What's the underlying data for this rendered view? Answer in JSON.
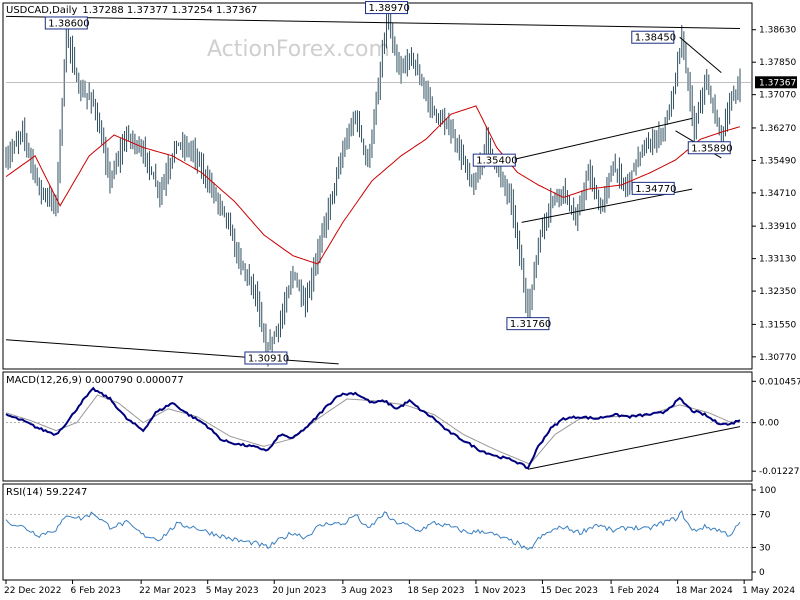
{
  "watermark": "ActionForex.com",
  "header": {
    "symbol": "USDCAD,Daily",
    "ohlc": "1.37288 1.37377 1.37254 1.37367"
  },
  "colors": {
    "bars": "#2f4f5f",
    "ma": "#cc0000",
    "macd_line": "#00007f",
    "macd_signal": "#9a9a9a",
    "rsi": "#3a7fc0",
    "trendline": "#000000",
    "current_price_box": "#000000"
  },
  "chart_data": [
    {
      "type": "ohlc",
      "panel": "price",
      "ylim": [
        1.3055,
        1.392
      ],
      "yticks": [
        "1.38630",
        "1.37850",
        "1.37070",
        "1.36270",
        "1.35490",
        "1.34710",
        "1.33910",
        "1.33130",
        "1.32350",
        "1.31550",
        "1.30770"
      ],
      "current_price": "1.37367",
      "xticks": [
        "22 Dec 2022",
        "6 Feb 2023",
        "22 Mar 2023",
        "5 May 2023",
        "20 Jun 2023",
        "3 Aug 2023",
        "18 Sep 2023",
        "1 Nov 2023",
        "15 Dec 2023",
        "1 Feb 2024",
        "18 Mar 2024",
        "1 May 2024"
      ],
      "annotations": [
        {
          "text": "1.38600",
          "date_index": 29,
          "value": 1.386
        },
        {
          "text": "1.38970",
          "date_index": 183,
          "value": 1.3897
        },
        {
          "text": "1.38450",
          "date_index": 325,
          "value": 1.3845
        },
        {
          "text": "1.35400",
          "date_index": 243,
          "value": 1.354
        },
        {
          "text": "1.35890",
          "date_index": 331,
          "value": 1.3589
        },
        {
          "text": "1.34770",
          "date_index": 305,
          "value": 1.3477
        },
        {
          "text": "1.31760",
          "date_index": 251,
          "value": 1.3176
        },
        {
          "text": "1.30910",
          "date_index": 125,
          "value": 1.3091
        }
      ],
      "anchors": [
        [
          0,
          1.355
        ],
        [
          8,
          1.362
        ],
        [
          16,
          1.348
        ],
        [
          24,
          1.344
        ],
        [
          29,
          1.386
        ],
        [
          35,
          1.372
        ],
        [
          42,
          1.369
        ],
        [
          50,
          1.35
        ],
        [
          58,
          1.361
        ],
        [
          66,
          1.357
        ],
        [
          74,
          1.347
        ],
        [
          82,
          1.359
        ],
        [
          90,
          1.357
        ],
        [
          98,
          1.349
        ],
        [
          106,
          1.341
        ],
        [
          112,
          1.331
        ],
        [
          120,
          1.323
        ],
        [
          125,
          1.3091
        ],
        [
          132,
          1.316
        ],
        [
          138,
          1.328
        ],
        [
          144,
          1.32
        ],
        [
          150,
          1.333
        ],
        [
          156,
          1.345
        ],
        [
          162,
          1.357
        ],
        [
          168,
          1.366
        ],
        [
          174,
          1.354
        ],
        [
          180,
          1.376
        ],
        [
          183,
          1.3897
        ],
        [
          189,
          1.376
        ],
        [
          195,
          1.38
        ],
        [
          201,
          1.372
        ],
        [
          207,
          1.365
        ],
        [
          213,
          1.363
        ],
        [
          219,
          1.356
        ],
        [
          225,
          1.348
        ],
        [
          231,
          1.36
        ],
        [
          237,
          1.352
        ],
        [
          243,
          1.345
        ],
        [
          248,
          1.329
        ],
        [
          251,
          1.3176
        ],
        [
          256,
          1.335
        ],
        [
          262,
          1.345
        ],
        [
          268,
          1.348
        ],
        [
          274,
          1.34
        ],
        [
          280,
          1.352
        ],
        [
          286,
          1.343
        ],
        [
          292,
          1.354
        ],
        [
          298,
          1.348
        ],
        [
          304,
          1.356
        ],
        [
          310,
          1.359
        ],
        [
          316,
          1.362
        ],
        [
          320,
          1.369
        ],
        [
          325,
          1.3845
        ],
        [
          331,
          1.362
        ],
        [
          336,
          1.374
        ],
        [
          340,
          1.368
        ],
        [
          344,
          1.36
        ],
        [
          348,
          1.368
        ],
        [
          353,
          1.3737
        ]
      ],
      "ma_anchors": [
        [
          0,
          1.351
        ],
        [
          14,
          1.356
        ],
        [
          26,
          1.344
        ],
        [
          40,
          1.356
        ],
        [
          52,
          1.361
        ],
        [
          66,
          1.358
        ],
        [
          80,
          1.356
        ],
        [
          94,
          1.352
        ],
        [
          110,
          1.345
        ],
        [
          124,
          1.337
        ],
        [
          138,
          1.332
        ],
        [
          150,
          1.33
        ],
        [
          162,
          1.34
        ],
        [
          176,
          1.35
        ],
        [
          190,
          1.356
        ],
        [
          202,
          1.36
        ],
        [
          214,
          1.366
        ],
        [
          226,
          1.368
        ],
        [
          236,
          1.358
        ],
        [
          246,
          1.352
        ],
        [
          256,
          1.349
        ],
        [
          268,
          1.346
        ],
        [
          280,
          1.348
        ],
        [
          296,
          1.349
        ],
        [
          310,
          1.352
        ],
        [
          322,
          1.355
        ],
        [
          334,
          1.36
        ],
        [
          346,
          1.362
        ],
        [
          353,
          1.363
        ]
      ]
    },
    {
      "type": "line",
      "panel": "macd",
      "title": "MACD(12,26,9) 0.000790 0.000077",
      "ylim": [
        -0.014,
        0.0118
      ],
      "yticks": [
        "0.010457",
        "0.00",
        "-0.012276"
      ],
      "series_anchors": [
        [
          0,
          0.002
        ],
        [
          8,
          0.0005
        ],
        [
          16,
          -0.0015
        ],
        [
          24,
          -0.003
        ],
        [
          30,
          0.0005
        ],
        [
          36,
          0.005
        ],
        [
          42,
          0.0085
        ],
        [
          50,
          0.006
        ],
        [
          58,
          0.001
        ],
        [
          66,
          -0.002
        ],
        [
          72,
          0.0025
        ],
        [
          80,
          0.005
        ],
        [
          88,
          0.002
        ],
        [
          96,
          -0.0005
        ],
        [
          104,
          -0.0045
        ],
        [
          112,
          -0.0055
        ],
        [
          118,
          -0.006
        ],
        [
          126,
          -0.007
        ],
        [
          132,
          -0.003
        ],
        [
          138,
          -0.004
        ],
        [
          146,
          -0.0005
        ],
        [
          154,
          0.004
        ],
        [
          160,
          0.007
        ],
        [
          168,
          0.0075
        ],
        [
          176,
          0.005
        ],
        [
          182,
          0.0055
        ],
        [
          188,
          0.0035
        ],
        [
          194,
          0.0055
        ],
        [
          200,
          0.003
        ],
        [
          206,
          0.001
        ],
        [
          212,
          -0.002
        ],
        [
          220,
          -0.0045
        ],
        [
          228,
          -0.007
        ],
        [
          236,
          -0.0085
        ],
        [
          244,
          -0.0095
        ],
        [
          251,
          -0.0115
        ],
        [
          256,
          -0.006
        ],
        [
          262,
          -0.0015
        ],
        [
          268,
          0.001
        ],
        [
          276,
          0.0015
        ],
        [
          284,
          0.001
        ],
        [
          292,
          0.002
        ],
        [
          300,
          0.0015
        ],
        [
          308,
          0.002
        ],
        [
          316,
          0.0025
        ],
        [
          324,
          0.006
        ],
        [
          330,
          0.003
        ],
        [
          336,
          0.002
        ],
        [
          342,
          0.0
        ],
        [
          348,
          -0.0005
        ],
        [
          353,
          0.0008
        ]
      ],
      "signal_anchors": [
        [
          0,
          0.0025
        ],
        [
          12,
          0.0005
        ],
        [
          24,
          -0.002
        ],
        [
          34,
          0.0
        ],
        [
          44,
          0.007
        ],
        [
          54,
          0.005
        ],
        [
          66,
          0.0
        ],
        [
          78,
          0.0035
        ],
        [
          92,
          0.0015
        ],
        [
          108,
          -0.0035
        ],
        [
          124,
          -0.006
        ],
        [
          138,
          -0.004
        ],
        [
          150,
          0.001
        ],
        [
          164,
          0.006
        ],
        [
          178,
          0.0055
        ],
        [
          192,
          0.0045
        ],
        [
          206,
          0.002
        ],
        [
          220,
          -0.003
        ],
        [
          236,
          -0.007
        ],
        [
          252,
          -0.0105
        ],
        [
          264,
          -0.003
        ],
        [
          276,
          0.001
        ],
        [
          292,
          0.0015
        ],
        [
          308,
          0.0018
        ],
        [
          324,
          0.0045
        ],
        [
          338,
          0.0025
        ],
        [
          348,
          0.0002
        ],
        [
          353,
          0.0001
        ]
      ]
    },
    {
      "type": "line",
      "panel": "rsi",
      "title": "RSI(14) 59.2247",
      "ylim": [
        0,
        100
      ],
      "yticks": [
        "100",
        "70",
        "30",
        "0"
      ],
      "series_anchors": [
        [
          0,
          62
        ],
        [
          8,
          55
        ],
        [
          16,
          45
        ],
        [
          24,
          52
        ],
        [
          30,
          70
        ],
        [
          36,
          65
        ],
        [
          42,
          72
        ],
        [
          50,
          55
        ],
        [
          58,
          60
        ],
        [
          66,
          45
        ],
        [
          74,
          40
        ],
        [
          82,
          58
        ],
        [
          90,
          55
        ],
        [
          98,
          48
        ],
        [
          106,
          42
        ],
        [
          112,
          38
        ],
        [
          120,
          35
        ],
        [
          126,
          30
        ],
        [
          132,
          40
        ],
        [
          138,
          48
        ],
        [
          144,
          42
        ],
        [
          150,
          55
        ],
        [
          156,
          60
        ],
        [
          162,
          58
        ],
        [
          168,
          70
        ],
        [
          174,
          52
        ],
        [
          182,
          72
        ],
        [
          186,
          62
        ],
        [
          192,
          58
        ],
        [
          198,
          50
        ],
        [
          206,
          60
        ],
        [
          214,
          55
        ],
        [
          222,
          48
        ],
        [
          230,
          50
        ],
        [
          238,
          42
        ],
        [
          246,
          35
        ],
        [
          251,
          25
        ],
        [
          256,
          40
        ],
        [
          262,
          50
        ],
        [
          268,
          55
        ],
        [
          276,
          48
        ],
        [
          284,
          58
        ],
        [
          292,
          50
        ],
        [
          300,
          55
        ],
        [
          308,
          52
        ],
        [
          316,
          60
        ],
        [
          322,
          65
        ],
        [
          325,
          72
        ],
        [
          330,
          50
        ],
        [
          336,
          55
        ],
        [
          342,
          52
        ],
        [
          348,
          45
        ],
        [
          353,
          59
        ]
      ]
    }
  ]
}
